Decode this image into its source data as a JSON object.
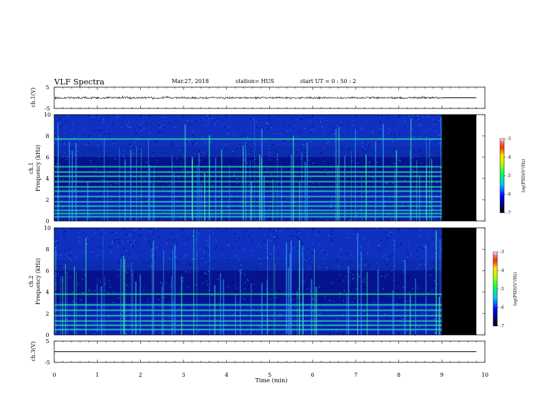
{
  "header": {
    "title": "VLF Spectra",
    "date": "Mar.27, 2018",
    "station": "station= HUS",
    "start": "start  UT =   0 : 50 : 2"
  },
  "chart_data": [
    {
      "type": "line",
      "id": "ch1_waveform",
      "ylabel": "ch.1(V)",
      "ylim": [
        -5,
        5
      ],
      "yticks": [
        "5",
        "-5"
      ],
      "x_range": [
        0,
        10
      ],
      "data_end": 9.0,
      "series": [
        {
          "x": [
            0,
            9.8
          ],
          "y": [
            0,
            0
          ]
        }
      ]
    },
    {
      "type": "heatmap",
      "id": "ch1_spectrogram",
      "ylabel_top": "ch.1",
      "ylabel": "Frequency (kHz)",
      "ylim": [
        0,
        10
      ],
      "yticks": [
        "0",
        "2",
        "4",
        "6",
        "8",
        "10"
      ],
      "x_range": [
        0,
        10
      ],
      "data_end": 9.0,
      "no_data_end": 9.8,
      "bands_khz": [
        0.4,
        0.7,
        1.0,
        1.4,
        1.8,
        2.3,
        2.8,
        3.2,
        3.7,
        4.2,
        4.6,
        5.1,
        7.7
      ]
    },
    {
      "type": "heatmap",
      "id": "ch2_spectrogram",
      "ylabel_top": "ch.2",
      "ylabel": "Frequency (kHz)",
      "ylim": [
        0,
        10
      ],
      "yticks": [
        "0",
        "2",
        "4",
        "6",
        "8",
        "10"
      ],
      "x_range": [
        0,
        10
      ],
      "data_end": 9.0,
      "no_data_end": 9.8,
      "bands_khz": [
        0.5,
        0.9,
        1.3,
        1.8,
        2.3,
        2.8,
        3.8
      ]
    },
    {
      "type": "line",
      "id": "ch3_waveform",
      "ylabel": "ch.3(V)",
      "ylim": [
        -5,
        5
      ],
      "yticks": [
        "5",
        "-5"
      ],
      "x_range": [
        0,
        10
      ],
      "series": [
        {
          "x": [
            0,
            9.8
          ],
          "y": [
            0,
            0
          ]
        }
      ]
    }
  ],
  "x_axis": {
    "label": "Time (min)",
    "ticks": [
      "0",
      "1",
      "2",
      "3",
      "4",
      "5",
      "6",
      "7",
      "8",
      "9",
      "10"
    ]
  },
  "colorbars": [
    {
      "label": "log(PSD)(V²/Hz)",
      "ticks": [
        "-3",
        "-4",
        "-5",
        "-6",
        "-7"
      ],
      "range": [
        -7,
        -3
      ]
    },
    {
      "label": "log(PSD)(V²/Hz)",
      "ticks": [
        "-3",
        "-4",
        "-5",
        "-6",
        "-7"
      ],
      "range": [
        -7,
        -3
      ]
    }
  ]
}
